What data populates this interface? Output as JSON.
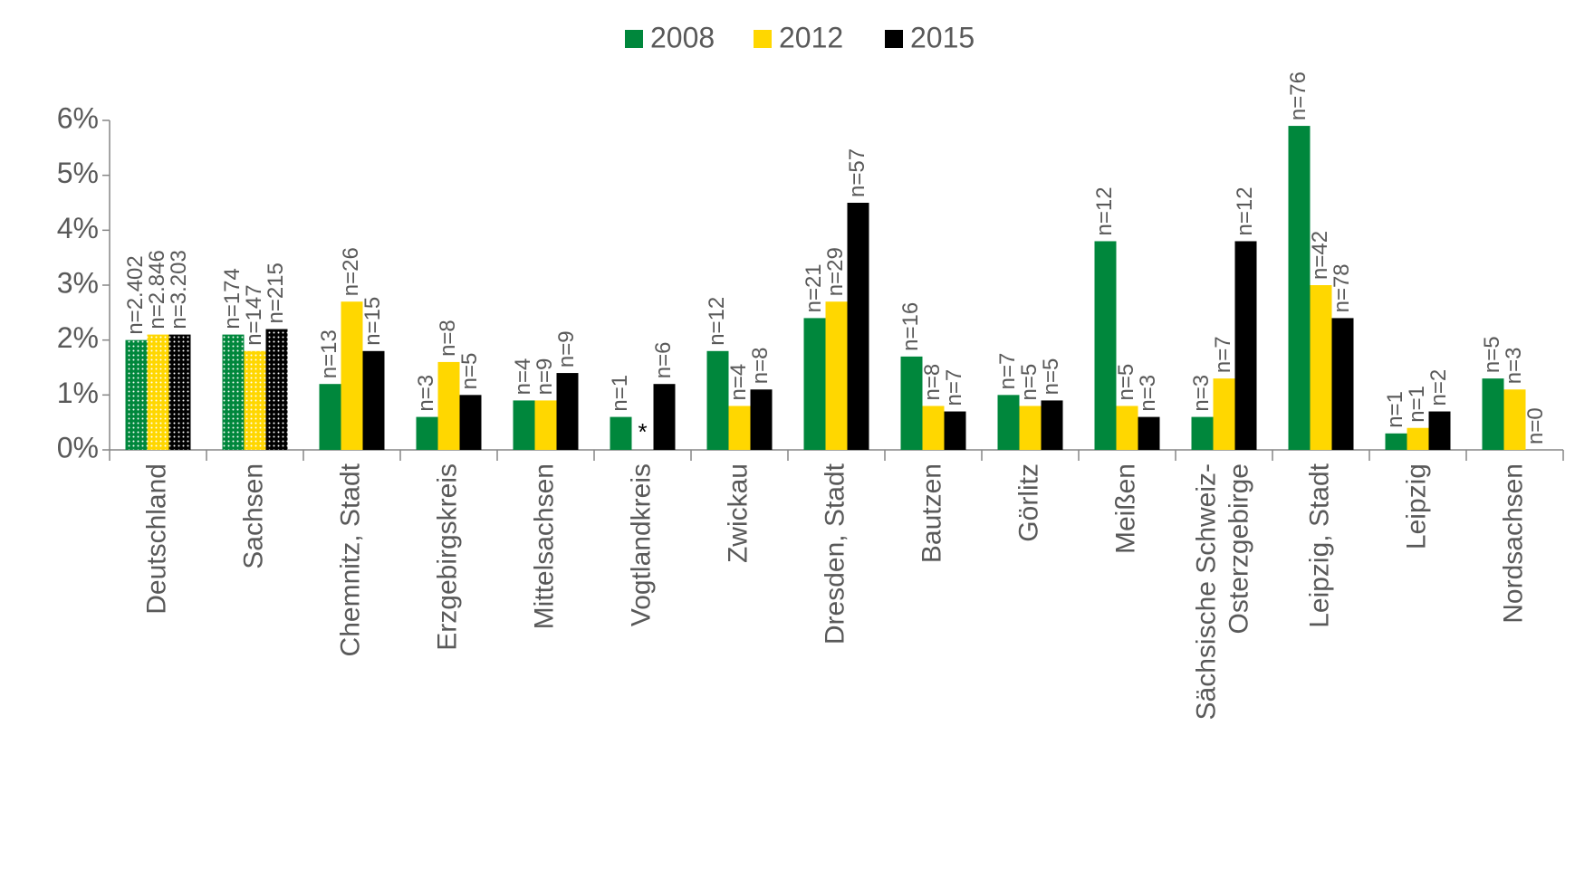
{
  "chart_data": {
    "type": "bar",
    "categories": [
      "Deutschland",
      "Sachsen",
      "Chemnitz, Stadt",
      "Erzgebirgskreis",
      "Mittelsachsen",
      "Vogtlandkreis",
      "Zwickau",
      "Dresden, Stadt",
      "Bautzen",
      "Görlitz",
      "Meißen",
      "Sächsische Schweiz-\nOsterzgebirge",
      "Leipzig, Stadt",
      "Leipzig",
      "Nordsachsen"
    ],
    "series": [
      {
        "name": "2008",
        "color": "#00873c",
        "values": [
          2.0,
          2.1,
          1.2,
          0.6,
          0.9,
          0.6,
          1.8,
          2.4,
          1.7,
          1.0,
          3.8,
          0.6,
          5.9,
          0.3,
          1.3
        ],
        "n_labels": [
          "n=2.402",
          "n=174",
          "n=13",
          "n=3",
          "n=4",
          "n=1",
          "n=12",
          "n=21",
          "n=16",
          "n=7",
          "n=12",
          "n=3",
          "n=76",
          "n=1",
          "n=5"
        ]
      },
      {
        "name": "2012",
        "color": "#ffd700",
        "values": [
          2.1,
          1.8,
          2.7,
          1.6,
          0.9,
          null,
          0.8,
          2.7,
          0.8,
          0.8,
          0.8,
          1.3,
          3.0,
          0.4,
          1.1
        ],
        "n_labels": [
          "n=2.846",
          "n=147",
          "n=26",
          "n=8",
          "n=9",
          null,
          "n=4",
          "n=29",
          "n=8",
          "n=5",
          "n=5",
          "n=7",
          "n=42",
          "n=1",
          "n=3"
        ]
      },
      {
        "name": "2015",
        "color": "#000000",
        "values": [
          2.1,
          2.2,
          1.8,
          1.0,
          1.4,
          1.2,
          1.1,
          4.5,
          0.7,
          0.9,
          0.6,
          3.8,
          2.4,
          0.7,
          0
        ],
        "n_labels": [
          "n=3.203",
          "n=215",
          "n=15",
          "n=5",
          "n=9",
          "n=6",
          "n=8",
          "n=57",
          "n=7",
          "n=5",
          "n=3",
          "n=12",
          "n=78",
          "n=2",
          "n=0"
        ]
      }
    ],
    "missing_marker": "*",
    "patterned_categories": [
      "Deutschland",
      "Sachsen"
    ],
    "ylim": [
      0,
      6
    ],
    "yticks": [
      {
        "value": 0,
        "label": "0%"
      },
      {
        "value": 1,
        "label": "1%"
      },
      {
        "value": 2,
        "label": "2%"
      },
      {
        "value": 3,
        "label": "3%"
      },
      {
        "value": 4,
        "label": "4%"
      },
      {
        "value": 5,
        "label": "5%"
      },
      {
        "value": 6,
        "label": "6%"
      }
    ],
    "grid": false,
    "legend": "top"
  }
}
